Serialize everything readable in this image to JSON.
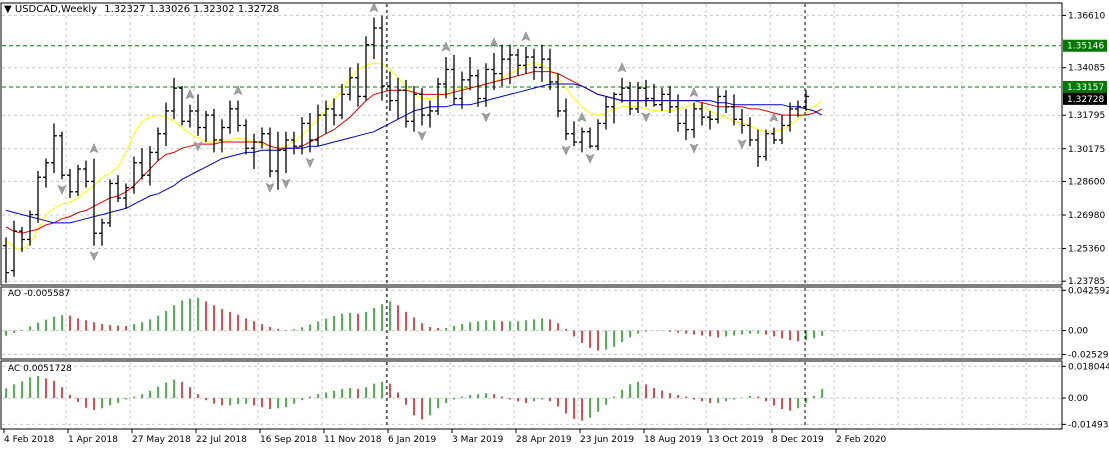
{
  "window": {
    "symbol_label": "USDCAD,Weekly",
    "ohlc_label": "1.32327 1.33026 1.32302 1.32728"
  },
  "chart_data": {
    "type": "candlestick",
    "symbol": "USDCAD",
    "timeframe": "Weekly",
    "x_axis_labels": [
      "4 Feb 2018",
      "1 Apr 2018",
      "27 May 2018",
      "22 Jul 2018",
      "16 Sep 2018",
      "11 Nov 2018",
      "6 Jan 2019",
      "3 Mar 2019",
      "28 Apr 2019",
      "23 Jun 2019",
      "18 Aug 2019",
      "13 Oct 2019",
      "8 Dec 2019",
      "2 Feb 2020"
    ],
    "price_ticks": [
      "1.36610",
      "1.34085",
      "1.31795",
      "1.30175",
      "1.28600",
      "1.26980",
      "1.25360",
      "1.23785"
    ],
    "price_ylim": [
      1.2365,
      1.3716
    ],
    "horizontal_levels": [
      {
        "label": "1.35146",
        "value": 1.35146,
        "color": "#007700"
      },
      {
        "label": "1.33157",
        "value": 1.33157,
        "color": "#007700"
      },
      {
        "label": "1.32728",
        "value": 1.32728,
        "color": "#000000"
      }
    ],
    "moving_averages": [
      {
        "color": "#ffff00",
        "values": [
          1.258,
          1.254,
          1.253,
          1.256,
          1.263,
          1.27,
          1.273,
          1.275,
          1.276,
          1.278,
          1.281,
          1.284,
          1.288,
          1.29,
          1.293,
          1.3,
          1.309,
          1.315,
          1.317,
          1.318,
          1.317,
          1.315,
          1.312,
          1.309,
          1.307,
          1.305,
          1.305,
          1.306,
          1.306,
          1.307,
          1.306,
          1.305,
          1.304,
          1.303,
          1.302,
          1.303,
          1.305,
          1.308,
          1.312,
          1.316,
          1.32,
          1.325,
          1.33,
          1.336,
          1.34,
          1.342,
          1.343,
          1.343,
          1.34,
          1.336,
          1.332,
          1.328,
          1.326,
          1.326,
          1.327,
          1.329,
          1.33,
          1.331,
          1.331,
          1.332,
          1.333,
          1.334,
          1.336,
          1.338,
          1.34,
          1.342,
          1.343,
          1.342,
          1.34,
          1.336,
          1.331,
          1.326,
          1.322,
          1.319,
          1.318,
          1.319,
          1.321,
          1.322,
          1.322,
          1.322,
          1.321,
          1.32,
          1.32,
          1.32,
          1.321,
          1.322,
          1.323,
          1.322,
          1.32,
          1.318,
          1.317,
          1.315,
          1.314,
          1.313,
          1.311,
          1.31,
          1.31,
          1.311,
          1.313,
          1.316,
          1.319,
          1.322,
          1.325
        ]
      },
      {
        "color": "#dd0000",
        "values": [
          1.264,
          1.262,
          1.261,
          1.262,
          1.263,
          1.265,
          1.266,
          1.268,
          1.269,
          1.271,
          1.272,
          1.274,
          1.276,
          1.278,
          1.279,
          1.281,
          1.284,
          1.288,
          1.292,
          1.296,
          1.299,
          1.3,
          1.302,
          1.303,
          1.304,
          1.304,
          1.304,
          1.305,
          1.305,
          1.305,
          1.305,
          1.305,
          1.305,
          1.303,
          1.302,
          1.302,
          1.302,
          1.303,
          1.305,
          1.307,
          1.309,
          1.311,
          1.314,
          1.317,
          1.321,
          1.325,
          1.328,
          1.329,
          1.33,
          1.33,
          1.33,
          1.329,
          1.328,
          1.328,
          1.328,
          1.328,
          1.329,
          1.33,
          1.331,
          1.332,
          1.333,
          1.334,
          1.335,
          1.336,
          1.337,
          1.338,
          1.339,
          1.339,
          1.339,
          1.338,
          1.336,
          1.334,
          1.332,
          1.33,
          1.328,
          1.327,
          1.326,
          1.325,
          1.325,
          1.325,
          1.325,
          1.325,
          1.325,
          1.325,
          1.325,
          1.325,
          1.325,
          1.324,
          1.323,
          1.322,
          1.322,
          1.322,
          1.322,
          1.321,
          1.321,
          1.32,
          1.319,
          1.318,
          1.318,
          1.318,
          1.318,
          1.319,
          1.321
        ]
      },
      {
        "color": "#0000cc",
        "values": [
          1.272,
          1.271,
          1.27,
          1.269,
          1.268,
          1.267,
          1.266,
          1.266,
          1.266,
          1.267,
          1.268,
          1.269,
          1.27,
          1.271,
          1.272,
          1.273,
          1.275,
          1.277,
          1.279,
          1.28,
          1.282,
          1.284,
          1.287,
          1.289,
          1.291,
          1.293,
          1.295,
          1.297,
          1.298,
          1.299,
          1.3,
          1.3,
          1.301,
          1.301,
          1.301,
          1.302,
          1.302,
          1.302,
          1.303,
          1.303,
          1.304,
          1.305,
          1.306,
          1.307,
          1.308,
          1.309,
          1.31,
          1.312,
          1.314,
          1.316,
          1.318,
          1.32,
          1.321,
          1.322,
          1.322,
          1.322,
          1.323,
          1.323,
          1.323,
          1.324,
          1.325,
          1.326,
          1.327,
          1.328,
          1.329,
          1.33,
          1.331,
          1.332,
          1.333,
          1.333,
          1.333,
          1.333,
          1.332,
          1.33,
          1.328,
          1.327,
          1.326,
          1.325,
          1.325,
          1.325,
          1.325,
          1.325,
          1.325,
          1.325,
          1.325,
          1.325,
          1.325,
          1.325,
          1.325,
          1.324,
          1.324,
          1.323,
          1.323,
          1.323,
          1.323,
          1.323,
          1.323,
          1.323,
          1.322,
          1.322,
          1.321,
          1.32,
          1.318
        ]
      }
    ],
    "bars": [
      [
        1.255,
        1.259,
        1.237,
        1.242
      ],
      [
        1.243,
        1.267,
        1.24,
        1.262
      ],
      [
        1.262,
        1.264,
        1.252,
        1.258
      ],
      [
        1.258,
        1.272,
        1.255,
        1.27
      ],
      [
        1.27,
        1.291,
        1.266,
        1.288
      ],
      [
        1.288,
        1.297,
        1.283,
        1.295
      ],
      [
        1.295,
        1.314,
        1.29,
        1.308
      ],
      [
        1.308,
        1.31,
        1.287,
        1.289
      ],
      [
        1.289,
        1.292,
        1.278,
        1.281
      ],
      [
        1.281,
        1.294,
        1.279,
        1.292
      ],
      [
        1.292,
        1.296,
        1.283,
        1.286
      ],
      [
        1.286,
        1.297,
        1.255,
        1.261
      ],
      [
        1.261,
        1.268,
        1.255,
        1.266
      ],
      [
        1.266,
        1.287,
        1.264,
        1.285
      ],
      [
        1.285,
        1.289,
        1.276,
        1.278
      ],
      [
        1.278,
        1.285,
        1.273,
        1.283
      ],
      [
        1.283,
        1.298,
        1.28,
        1.295
      ],
      [
        1.295,
        1.302,
        1.287,
        1.289
      ],
      [
        1.289,
        1.303,
        1.284,
        1.3
      ],
      [
        1.3,
        1.312,
        1.296,
        1.309
      ],
      [
        1.309,
        1.324,
        1.303,
        1.32
      ],
      [
        1.32,
        1.336,
        1.316,
        1.331
      ],
      [
        1.331,
        1.332,
        1.313,
        1.315
      ],
      [
        1.315,
        1.323,
        1.312,
        1.32
      ],
      [
        1.32,
        1.328,
        1.308,
        1.312
      ],
      [
        1.312,
        1.32,
        1.305,
        1.318
      ],
      [
        1.318,
        1.321,
        1.3,
        1.306
      ],
      [
        1.306,
        1.316,
        1.3,
        1.312
      ],
      [
        1.312,
        1.325,
        1.309,
        1.321
      ],
      [
        1.321,
        1.325,
        1.31,
        1.313
      ],
      [
        1.313,
        1.316,
        1.299,
        1.302
      ],
      [
        1.302,
        1.309,
        1.292,
        1.305
      ],
      [
        1.305,
        1.312,
        1.302,
        1.309
      ],
      [
        1.309,
        1.312,
        1.288,
        1.291
      ],
      [
        1.291,
        1.31,
        1.282,
        1.301
      ],
      [
        1.301,
        1.31,
        1.29,
        1.306
      ],
      [
        1.306,
        1.31,
        1.299,
        1.303
      ],
      [
        1.303,
        1.317,
        1.299,
        1.314
      ],
      [
        1.314,
        1.319,
        1.3,
        1.306
      ],
      [
        1.306,
        1.323,
        1.303,
        1.318
      ],
      [
        1.318,
        1.325,
        1.309,
        1.321
      ],
      [
        1.321,
        1.326,
        1.313,
        1.318
      ],
      [
        1.318,
        1.333,
        1.316,
        1.328
      ],
      [
        1.328,
        1.341,
        1.325,
        1.336
      ],
      [
        1.336,
        1.343,
        1.322,
        1.327
      ],
      [
        1.327,
        1.356,
        1.325,
        1.352
      ],
      [
        1.352,
        1.365,
        1.345,
        1.36
      ],
      [
        1.36,
        1.366,
        1.325,
        1.332
      ],
      [
        1.332,
        1.339,
        1.32,
        1.325
      ],
      [
        1.325,
        1.336,
        1.316,
        1.33
      ],
      [
        1.33,
        1.335,
        1.312,
        1.315
      ],
      [
        1.315,
        1.332,
        1.31,
        1.328
      ],
      [
        1.328,
        1.331,
        1.313,
        1.318
      ],
      [
        1.318,
        1.325,
        1.312,
        1.32
      ],
      [
        1.32,
        1.336,
        1.318,
        1.333
      ],
      [
        1.333,
        1.346,
        1.326,
        1.34
      ],
      [
        1.34,
        1.347,
        1.323,
        1.326
      ],
      [
        1.326,
        1.339,
        1.321,
        1.335
      ],
      [
        1.335,
        1.346,
        1.33,
        1.337
      ],
      [
        1.337,
        1.34,
        1.322,
        1.326
      ],
      [
        1.326,
        1.343,
        1.322,
        1.34
      ],
      [
        1.34,
        1.348,
        1.33,
        1.338
      ],
      [
        1.338,
        1.352,
        1.332,
        1.345
      ],
      [
        1.345,
        1.352,
        1.333,
        1.347
      ],
      [
        1.347,
        1.35,
        1.337,
        1.342
      ],
      [
        1.342,
        1.351,
        1.338,
        1.346
      ],
      [
        1.346,
        1.35,
        1.335,
        1.341
      ],
      [
        1.341,
        1.352,
        1.334,
        1.345
      ],
      [
        1.345,
        1.35,
        1.33,
        1.334
      ],
      [
        1.334,
        1.338,
        1.317,
        1.32
      ],
      [
        1.32,
        1.326,
        1.306,
        1.309
      ],
      [
        1.309,
        1.315,
        1.303,
        1.305
      ],
      [
        1.305,
        1.312,
        1.3,
        1.31
      ],
      [
        1.31,
        1.312,
        1.302,
        1.303
      ],
      [
        1.303,
        1.316,
        1.301,
        1.314
      ],
      [
        1.314,
        1.327,
        1.311,
        1.322
      ],
      [
        1.322,
        1.329,
        1.314,
        1.328
      ],
      [
        1.328,
        1.336,
        1.324,
        1.331
      ],
      [
        1.331,
        1.334,
        1.318,
        1.321
      ],
      [
        1.321,
        1.334,
        1.319,
        1.331
      ],
      [
        1.331,
        1.335,
        1.322,
        1.326
      ],
      [
        1.326,
        1.333,
        1.322,
        1.323
      ],
      [
        1.323,
        1.331,
        1.32,
        1.328
      ],
      [
        1.328,
        1.332,
        1.319,
        1.322
      ],
      [
        1.322,
        1.328,
        1.31,
        1.314
      ],
      [
        1.314,
        1.321,
        1.306,
        1.311
      ],
      [
        1.311,
        1.324,
        1.307,
        1.321
      ],
      [
        1.321,
        1.324,
        1.313,
        1.317
      ],
      [
        1.317,
        1.32,
        1.311,
        1.316
      ],
      [
        1.316,
        1.331,
        1.314,
        1.327
      ],
      [
        1.327,
        1.33,
        1.319,
        1.322
      ],
      [
        1.322,
        1.328,
        1.313,
        1.316
      ],
      [
        1.316,
        1.321,
        1.309,
        1.313
      ],
      [
        1.313,
        1.317,
        1.303,
        1.306
      ],
      [
        1.306,
        1.311,
        1.293,
        1.298
      ],
      [
        1.298,
        1.311,
        1.296,
        1.309
      ],
      [
        1.309,
        1.312,
        1.304,
        1.306
      ],
      [
        1.306,
        1.318,
        1.304,
        1.313
      ],
      [
        1.313,
        1.324,
        1.31,
        1.321
      ],
      [
        1.321,
        1.325,
        1.317,
        1.322
      ],
      [
        1.322,
        1.33,
        1.32,
        1.327
      ]
    ],
    "fractal_up_bars": [
      11,
      23,
      29,
      46,
      55,
      61,
      65,
      72,
      77,
      86,
      96
    ],
    "fractal_down_bars": [
      7,
      11,
      24,
      33,
      35,
      38,
      52,
      60,
      70,
      73,
      80,
      86,
      92
    ],
    "ao_indicator": {
      "label": "AO -0.005587",
      "ticks": [
        "0.042592",
        "0.00",
        "-0.02529"
      ],
      "ylim": [
        -0.029,
        0.045
      ],
      "colors": {
        "up": "#009900",
        "down": "#cc0000"
      },
      "values": [
        -0.0055,
        -0.0025,
        0.0005,
        0.0045,
        0.0085,
        0.0115,
        0.0148,
        0.0162,
        0.0158,
        0.0128,
        0.0108,
        0.0088,
        0.0068,
        0.0058,
        0.0052,
        0.0048,
        0.0068,
        0.0088,
        0.0118,
        0.0158,
        0.0208,
        0.0268,
        0.0318,
        0.0338,
        0.0348,
        0.0308,
        0.0268,
        0.0228,
        0.0198,
        0.0168,
        0.0128,
        0.0098,
        0.0068,
        0.0038,
        0.0018,
        0.0005,
        0.0015,
        0.0035,
        0.0065,
        0.0095,
        0.0125,
        0.0155,
        0.0178,
        0.0188,
        0.0178,
        0.0198,
        0.0238,
        0.0278,
        0.0308,
        0.0268,
        0.0198,
        0.0138,
        0.0078,
        0.0038,
        0.0028,
        0.0028,
        0.0048,
        0.0068,
        0.0088,
        0.0098,
        0.0108,
        0.0108,
        0.0098,
        0.0098,
        0.0098,
        0.0108,
        0.0118,
        0.0128,
        0.0118,
        0.0078,
        0.0018,
        -0.0062,
        -0.0132,
        -0.0182,
        -0.0212,
        -0.0202,
        -0.0172,
        -0.0122,
        -0.0072,
        -0.0032,
        -0.0012,
        -0.0002,
        -0.0002,
        -0.0012,
        -0.0022,
        -0.0032,
        -0.0042,
        -0.0052,
        -0.0062,
        -0.0072,
        -0.0062,
        -0.0052,
        -0.0042,
        -0.0032,
        -0.0032,
        -0.0042,
        -0.0062,
        -0.0082,
        -0.0102,
        -0.0112,
        -0.0102,
        -0.0082,
        -0.0056
      ]
    },
    "ac_indicator": {
      "label": "AC 0.0051728",
      "ticks": [
        "0.0180441",
        "0.00",
        "-0.014939"
      ],
      "ylim": [
        -0.017,
        0.0205
      ],
      "colors": {
        "up": "#009900",
        "down": "#cc0000"
      },
      "values": [
        0.0055,
        0.0078,
        0.0095,
        0.0118,
        0.0125,
        0.0112,
        0.0098,
        0.0062,
        0.0018,
        -0.0022,
        -0.0055,
        -0.0068,
        -0.0058,
        -0.0042,
        -0.0028,
        -0.0008,
        0.0008,
        0.0022,
        0.0042,
        0.0065,
        0.0088,
        0.0105,
        0.0092,
        0.0062,
        0.0022,
        -0.0012,
        -0.0032,
        -0.0042,
        -0.0042,
        -0.0035,
        -0.0032,
        -0.0042,
        -0.0052,
        -0.0062,
        -0.0058,
        -0.0052,
        -0.0032,
        -0.0012,
        0.0008,
        0.0022,
        0.0032,
        0.0042,
        0.0052,
        0.0058,
        0.0052,
        0.0062,
        0.0082,
        0.0092,
        0.0082,
        0.0032,
        -0.0038,
        -0.0098,
        -0.0122,
        -0.0098,
        -0.0058,
        -0.0028,
        -0.0008,
        0.0008,
        0.0018,
        0.0022,
        0.0028,
        0.0022,
        0.0008,
        -0.0008,
        -0.0018,
        -0.0028,
        -0.0018,
        -0.0008,
        -0.0018,
        -0.0048,
        -0.0088,
        -0.0118,
        -0.0128,
        -0.0112,
        -0.0078,
        -0.0038,
        0.0008,
        0.0048,
        0.0078,
        0.0092,
        0.0078,
        0.0058,
        0.0042,
        0.0028,
        0.0018,
        0.0008,
        -0.0008,
        -0.0018,
        -0.0028,
        -0.0028,
        -0.0018,
        -0.0008,
        0.0002,
        0.0012,
        0.0008,
        -0.0018,
        -0.0042,
        -0.0062,
        -0.0072,
        -0.0058,
        -0.0028,
        0.0012,
        0.0052
      ]
    }
  }
}
